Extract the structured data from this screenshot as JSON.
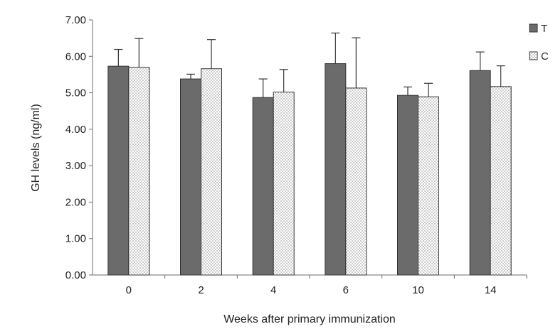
{
  "chart_data": {
    "type": "bar",
    "title": "",
    "xlabel": "Weeks after primary immunization",
    "ylabel": "GH levels (ng/ml)",
    "ylim": [
      0,
      7
    ],
    "yticks": [
      "0.00",
      "1.00",
      "2.00",
      "3.00",
      "4.00",
      "5.00",
      "6.00",
      "7.00"
    ],
    "categories": [
      "0",
      "2",
      "4",
      "6",
      "10",
      "14"
    ],
    "series": [
      {
        "name": "T",
        "values": [
          5.73,
          5.38,
          4.87,
          5.8,
          4.93,
          5.61
        ],
        "errors": [
          0.46,
          0.13,
          0.51,
          0.84,
          0.23,
          0.51
        ],
        "color": "#6b6b6b",
        "pattern": "solid"
      },
      {
        "name": "C",
        "values": [
          5.7,
          5.66,
          5.02,
          5.13,
          4.89,
          5.17
        ],
        "errors": [
          0.79,
          0.8,
          0.62,
          1.38,
          0.37,
          0.57
        ],
        "color": "#ffffff",
        "pattern": "dotted"
      }
    ],
    "grid": false,
    "legend_position": "top-right"
  }
}
